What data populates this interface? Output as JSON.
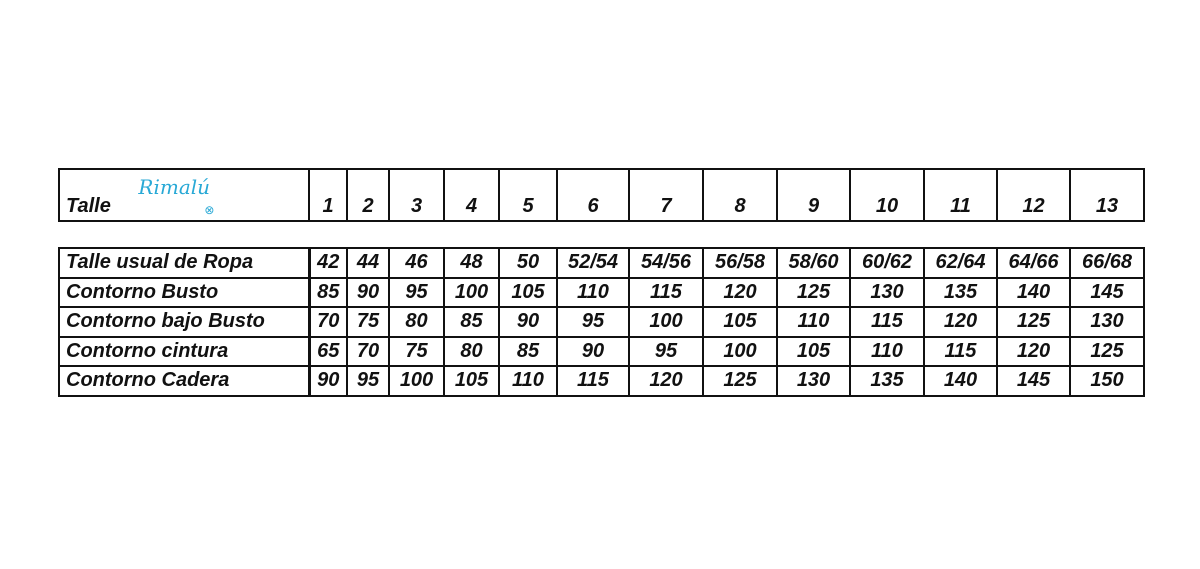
{
  "header": {
    "label": "Talle",
    "logo_text": "Rimalú",
    "logo_color": "#29a9d6",
    "sizes": [
      "1",
      "2",
      "3",
      "4",
      "5",
      "6",
      "7",
      "8",
      "9",
      "10",
      "11",
      "12",
      "13"
    ]
  },
  "rows": [
    {
      "label": "Talle usual de Ropa",
      "values": [
        "42",
        "44",
        "46",
        "48",
        "50",
        "52/54",
        "54/56",
        "56/58",
        "58/60",
        "60/62",
        "62/64",
        "64/66",
        "66/68"
      ]
    },
    {
      "label": "Contorno Busto",
      "values": [
        "85",
        "90",
        "95",
        "100",
        "105",
        "110",
        "115",
        "120",
        "125",
        "130",
        "135",
        "140",
        "145"
      ]
    },
    {
      "label": "Contorno bajo Busto",
      "values": [
        "70",
        "75",
        "80",
        "85",
        "90",
        "95",
        "100",
        "105",
        "110",
        "115",
        "120",
        "125",
        "130"
      ]
    },
    {
      "label": "Contorno cintura",
      "values": [
        "65",
        "70",
        "75",
        "80",
        "85",
        "90",
        "95",
        "100",
        "105",
        "110",
        "115",
        "120",
        "125"
      ]
    },
    {
      "label": "Contorno Cadera",
      "values": [
        "90",
        "95",
        "100",
        "105",
        "110",
        "115",
        "120",
        "125",
        "130",
        "135",
        "140",
        "145",
        "150"
      ]
    }
  ]
}
